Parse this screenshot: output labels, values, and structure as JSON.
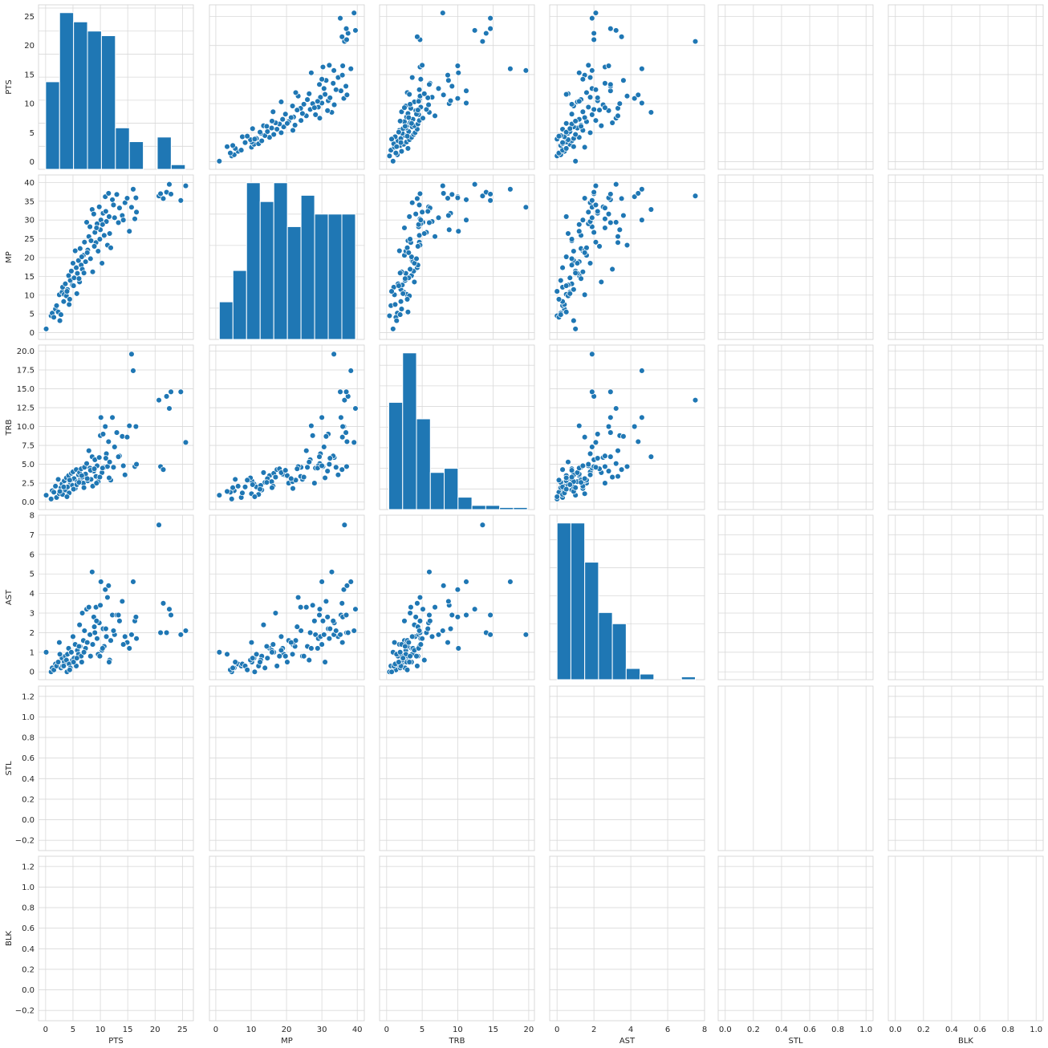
{
  "chart_data": {
    "type": "scatter",
    "kind": "pairplot",
    "variables": [
      "PTS",
      "MP",
      "TRB",
      "AST",
      "STL",
      "BLK"
    ],
    "axes": {
      "PTS": {
        "lim": [
          -1.3,
          27.0
        ],
        "ticks": [
          0,
          5,
          10,
          15,
          20,
          25
        ],
        "tick_labels": [
          "0",
          "5",
          "10",
          "15",
          "20",
          "25"
        ]
      },
      "MP": {
        "lim": [
          -1.8,
          42.0
        ],
        "ticks": [
          0,
          5,
          10,
          15,
          20,
          25,
          30,
          35,
          40
        ],
        "tick_labels": [
          "0",
          "5",
          "10",
          "15",
          "20",
          "25",
          "30",
          "35",
          "40"
        ],
        "x_ticks": [
          0,
          10,
          20,
          30,
          40
        ],
        "x_tick_labels": [
          "0",
          "10",
          "20",
          "30",
          "40"
        ]
      },
      "TRB": {
        "lim": [
          -1.0,
          20.8
        ],
        "ticks": [
          0,
          2.5,
          5,
          7.5,
          10,
          12.5,
          15,
          17.5,
          20
        ],
        "tick_labels": [
          "0.0",
          "2.5",
          "5.0",
          "7.5",
          "10.0",
          "12.5",
          "15.0",
          "17.5",
          "20.0"
        ],
        "x_ticks": [
          0,
          5,
          10,
          15,
          20
        ],
        "x_tick_labels": [
          "0",
          "5",
          "10",
          "15",
          "20"
        ]
      },
      "AST": {
        "lim": [
          -0.4,
          8.0
        ],
        "ticks": [
          0,
          1,
          2,
          3,
          4,
          5,
          6,
          7,
          8
        ],
        "tick_labels": [
          "0",
          "1",
          "2",
          "3",
          "4",
          "5",
          "6",
          "7",
          "8"
        ],
        "x_ticks": [
          0,
          2,
          4,
          6,
          8
        ],
        "x_tick_labels": [
          "0",
          "2",
          "4",
          "6",
          "8"
        ]
      },
      "STL": {
        "lim": [
          -0.3,
          1.3
        ],
        "ticks": [
          -0.2,
          0,
          0.2,
          0.4,
          0.6,
          0.8,
          1.0,
          1.2
        ],
        "tick_labels": [
          "−0.2",
          "0.0",
          "0.2",
          "0.4",
          "0.6",
          "0.8",
          "1.0",
          "1.2"
        ],
        "x_lim": [
          -0.05,
          1.05
        ],
        "x_ticks": [
          0,
          0.2,
          0.4,
          0.6,
          0.8,
          1.0
        ],
        "x_tick_labels": [
          "0.0",
          "0.2",
          "0.4",
          "0.6",
          "0.8",
          "1.0"
        ]
      },
      "BLK": {
        "lim": [
          -0.3,
          1.3
        ],
        "ticks": [
          -0.2,
          0,
          0.2,
          0.4,
          0.6,
          0.8,
          1.0,
          1.2
        ],
        "tick_labels": [
          "−0.2",
          "0.0",
          "0.2",
          "0.4",
          "0.6",
          "0.8",
          "1.0",
          "1.2"
        ],
        "x_lim": [
          -0.05,
          1.05
        ],
        "x_ticks": [
          0,
          0.2,
          0.4,
          0.6,
          0.8,
          1.0
        ],
        "x_tick_labels": [
          "0.0",
          "0.2",
          "0.4",
          "0.6",
          "0.8",
          "1.0"
        ]
      }
    },
    "histograms": {
      "PTS": {
        "edges": [
          0,
          2.55,
          5.1,
          7.65,
          10.2,
          12.75,
          15.3,
          17.85,
          20.4,
          22.95,
          25.5
        ],
        "counts": [
          19,
          34,
          32,
          30,
          29,
          9,
          6,
          0,
          7,
          1
        ]
      },
      "MP": {
        "edges": [
          1,
          4.85,
          8.7,
          12.55,
          16.4,
          20.25,
          24.1,
          27.95,
          31.8,
          35.65,
          39.5
        ],
        "counts": [
          6,
          11,
          25,
          22,
          25,
          18,
          23,
          20,
          20,
          20
        ]
      },
      "TRB": {
        "edges": [
          0.3,
          2.25,
          4.2,
          6.15,
          8.1,
          10.05,
          12.0,
          13.95,
          15.9,
          17.85,
          19.8
        ],
        "counts": [
          26,
          38,
          22,
          9,
          10,
          3,
          1,
          1,
          0.5,
          0.5
        ]
      },
      "AST": {
        "edges": [
          0,
          0.75,
          1.5,
          2.25,
          3.0,
          3.75,
          4.5,
          5.25,
          6.0,
          6.75,
          7.5
        ],
        "counts": [
          28,
          28,
          21,
          12,
          10,
          2,
          1,
          0,
          0,
          0.5
        ]
      },
      "STL": {
        "edges": [],
        "counts": []
      },
      "BLK": {
        "edges": [],
        "counts": []
      }
    },
    "records": [
      [
        0.1,
        1.0,
        0.9,
        1.0
      ],
      [
        1.0,
        4.5,
        0.4,
        0.0
      ],
      [
        1.2,
        5.2,
        1.5,
        0.2
      ],
      [
        1.5,
        4.1,
        1.3,
        0.1
      ],
      [
        1.8,
        6.3,
        2.1,
        0.4
      ],
      [
        2.0,
        7.2,
        0.6,
        0.3
      ],
      [
        2.3,
        5.5,
        3.0,
        0.5
      ],
      [
        2.5,
        10.1,
        1.1,
        1.5
      ],
      [
        2.8,
        4.8,
        1.9,
        0.2
      ],
      [
        3.0,
        10.8,
        2.4,
        0.7
      ],
      [
        3.1,
        12.1,
        1.0,
        0.3
      ],
      [
        3.4,
        10.2,
        2.8,
        0.5
      ],
      [
        3.6,
        13.0,
        1.6,
        0.8
      ],
      [
        3.8,
        9.8,
        3.2,
        0.6
      ],
      [
        4.0,
        11.5,
        2.0,
        0.9
      ],
      [
        4.2,
        15.2,
        3.5,
        1.2
      ],
      [
        4.3,
        7.5,
        1.2,
        0.4
      ],
      [
        4.5,
        13.9,
        2.6,
        0.2
      ],
      [
        4.7,
        16.4,
        3.8,
        1.0
      ],
      [
        4.9,
        12.7,
        2.2,
        0.6
      ],
      [
        5.0,
        18.5,
        4.0,
        1.8
      ],
      [
        5.2,
        14.6,
        3.1,
        0.7
      ],
      [
        5.4,
        21.8,
        1.8,
        1.4
      ],
      [
        5.6,
        17.3,
        4.3,
        0.3
      ],
      [
        5.8,
        15.8,
        2.7,
        1.1
      ],
      [
        6.0,
        19.2,
        3.6,
        0.9
      ],
      [
        6.2,
        13.5,
        3.9,
        2.4
      ],
      [
        6.3,
        22.4,
        2.9,
        1.3
      ],
      [
        6.5,
        18.0,
        4.4,
        0.8
      ],
      [
        6.7,
        16.9,
        3.3,
        3.0
      ],
      [
        6.9,
        20.6,
        2.5,
        1.6
      ],
      [
        7.1,
        24.1,
        4.6,
        2.1
      ],
      [
        7.3,
        18.9,
        3.7,
        1.2
      ],
      [
        7.5,
        29.4,
        5.1,
        3.2
      ],
      [
        7.7,
        22.0,
        2.8,
        1.5
      ],
      [
        7.9,
        25.6,
        6.8,
        3.3
      ],
      [
        8.1,
        28.2,
        4.5,
        1.9
      ],
      [
        8.3,
        24.5,
        3.0,
        0.8
      ],
      [
        8.5,
        32.8,
        6.0,
        5.1
      ],
      [
        8.6,
        16.2,
        2.1,
        1.4
      ],
      [
        8.8,
        31.6,
        4.1,
        2.8
      ],
      [
        9.0,
        26.7,
        5.6,
        2.0
      ],
      [
        9.2,
        24.0,
        3.4,
        3.3
      ],
      [
        9.4,
        29.0,
        4.8,
        1.7
      ],
      [
        9.6,
        21.7,
        2.7,
        0.9
      ],
      [
        9.8,
        33.5,
        5.9,
        2.5
      ],
      [
        10.0,
        27.4,
        8.8,
        3.4
      ],
      [
        10.1,
        30.0,
        11.2,
        4.6
      ],
      [
        10.3,
        18.5,
        3.9,
        1.1
      ],
      [
        10.5,
        31.8,
        9.0,
        2.2
      ],
      [
        10.7,
        25.9,
        4.6,
        1.3
      ],
      [
        10.9,
        36.2,
        10.0,
        4.2
      ],
      [
        11.1,
        29.6,
        6.4,
        1.8
      ],
      [
        11.3,
        23.3,
        4.7,
        3.8
      ],
      [
        11.5,
        37.1,
        8.0,
        4.4
      ],
      [
        11.7,
        26.4,
        5.3,
        0.6
      ],
      [
        11.9,
        22.6,
        2.9,
        1.6
      ],
      [
        12.2,
        35.4,
        11.2,
        2.9
      ],
      [
        12.6,
        30.6,
        7.3,
        1.9
      ],
      [
        13.0,
        36.8,
        9.2,
        2.9
      ],
      [
        13.5,
        33.2,
        6.1,
        2.6
      ],
      [
        14.0,
        31.2,
        8.7,
        3.6
      ],
      [
        14.5,
        34.6,
        3.6,
        1.8
      ],
      [
        14.9,
        35.8,
        8.6,
        1.5
      ],
      [
        15.3,
        27.0,
        10.1,
        1.2
      ],
      [
        15.7,
        33.4,
        19.6,
        1.9
      ],
      [
        16.0,
        38.2,
        17.4,
        4.6
      ],
      [
        16.3,
        30.3,
        4.7,
        2.6
      ],
      [
        16.5,
        35.9,
        10.0,
        2.8
      ],
      [
        16.6,
        32.1,
        5.0,
        1.7
      ],
      [
        20.7,
        36.4,
        13.5,
        7.5
      ],
      [
        21.0,
        37.0,
        4.7,
        2.0
      ],
      [
        21.5,
        35.7,
        4.3,
        3.5
      ],
      [
        22.1,
        37.4,
        14.0,
        2.0
      ],
      [
        22.6,
        39.5,
        12.4,
        3.2
      ],
      [
        22.9,
        36.9,
        14.6,
        2.9
      ],
      [
        24.7,
        35.2,
        14.6,
        1.9
      ],
      [
        25.6,
        39.1,
        7.9,
        2.1
      ],
      [
        2.6,
        3.2,
        1.4,
        0.9
      ],
      [
        3.3,
        8.3,
        2.0,
        0.3
      ],
      [
        3.9,
        11.0,
        0.7,
        0.0
      ],
      [
        4.4,
        8.9,
        2.9,
        0.1
      ],
      [
        5.1,
        12.5,
        1.7,
        0.5
      ],
      [
        5.7,
        10.4,
        2.3,
        0.7
      ],
      [
        6.1,
        14.4,
        2.6,
        1.3
      ],
      [
        6.6,
        20.2,
        3.5,
        0.5
      ],
      [
        7.0,
        15.9,
        1.9,
        1.0
      ],
      [
        7.6,
        21.3,
        3.1,
        1.5
      ],
      [
        8.2,
        19.7,
        4.2,
        0.8
      ],
      [
        8.9,
        23.0,
        4.4,
        2.3
      ],
      [
        9.3,
        27.9,
        2.5,
        2.6
      ],
      [
        9.9,
        24.9,
        3.3,
        0.8
      ],
      [
        10.4,
        28.8,
        4.5,
        1.2
      ],
      [
        11.0,
        32.3,
        5.8,
        2.2
      ],
      [
        11.6,
        30.9,
        3.2,
        0.5
      ],
      [
        12.4,
        34.0,
        4.6,
        2.1
      ],
      [
        13.3,
        29.3,
        6.0,
        2.9
      ],
      [
        14.2,
        30.0,
        4.8,
        1.4
      ]
    ]
  }
}
